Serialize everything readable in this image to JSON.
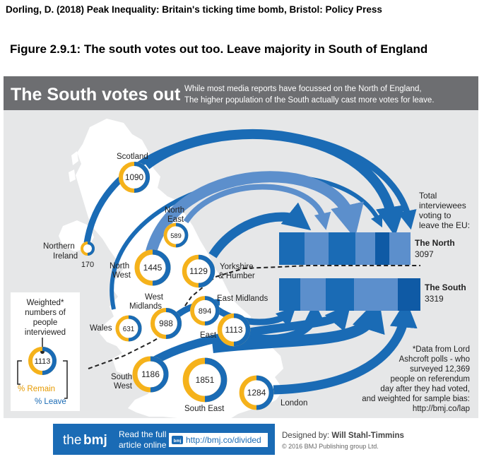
{
  "citation": "Dorling, D. (2018) Peak Inequality: Britain's ticking time bomb, Bristol: Policy Press",
  "figure_title": "Figure 2.9.1: The south votes out too. Leave majority in South of England",
  "colors": {
    "banner": "#6d6e71",
    "background": "#e6e7e8",
    "land": "#ffffff",
    "remain": "#f5b21b",
    "leave": "#1a6bb5",
    "leave_light": "#5c8fcc",
    "dark_blue": "#0f5aa5",
    "footer": "#1a6bb5"
  },
  "header": {
    "title": "The South votes out",
    "subtitle_line1": "While most media reports have focussed on the North of England,",
    "subtitle_line2": "The higher population of the South actually cast more votes for leave."
  },
  "regions": [
    {
      "id": "scotland",
      "name": "Scotland",
      "count": "1090"
    },
    {
      "id": "northern-ireland",
      "name": "Northern Ireland",
      "count": "170"
    },
    {
      "id": "north-east",
      "name": "North East",
      "count": "589"
    },
    {
      "id": "north-west",
      "name": "North West",
      "count": "1445"
    },
    {
      "id": "yorkshire",
      "name": "Yorkshire & Humber",
      "count": "1129"
    },
    {
      "id": "west-midlands",
      "name": "West Midlands",
      "count": "988"
    },
    {
      "id": "east-midlands",
      "name": "East Midlands",
      "count": "894"
    },
    {
      "id": "wales",
      "name": "Wales",
      "count": "631"
    },
    {
      "id": "east",
      "name": "East",
      "count": "1113"
    },
    {
      "id": "south-west",
      "name": "South West",
      "count": "1186"
    },
    {
      "id": "south-east",
      "name": "South East",
      "count": "1851"
    },
    {
      "id": "london",
      "name": "London",
      "count": "1284"
    }
  ],
  "labels": {
    "scotland": "Scotland",
    "ni_1": "Northern",
    "ni_2": "Ireland",
    "ne_1": "North",
    "ne_2": "East",
    "nw_1": "North",
    "nw_2": "West",
    "yh_1": "Yorkshire",
    "yh_2": "& Humber",
    "wm_1": "West",
    "wm_2": "Midlands",
    "em": "East Midlands",
    "wales": "Wales",
    "east": "East",
    "sw_1": "South",
    "sw_2": "West",
    "se": "South East",
    "london": "London"
  },
  "totals": {
    "caption_line1": "Total",
    "caption_line2": "interviewees",
    "caption_line3": "voting to",
    "caption_line4": "leave the EU:",
    "north_label": "The North",
    "north_value": "3097",
    "south_label": "The South",
    "south_value": "3319"
  },
  "legend": {
    "line1": "Weighted*",
    "line2": "numbers of",
    "line3": "people",
    "line4": "interviewed",
    "example_value": "1113",
    "remain_label": "% Remain",
    "leave_label": "% Leave"
  },
  "footnote": {
    "line1": "*Data from Lord",
    "line2": "Ashcroft polls - who",
    "line3": "surveyed 12,369",
    "line4": "people on referendum",
    "line5": "day after they had voted,",
    "line6": "and weighted for sample bias:",
    "line7": "http://bmj.co/lap"
  },
  "footer": {
    "logo_the": "the",
    "logo_bmj": "bmj",
    "read_line1": "Read the full",
    "read_line2": "article online",
    "link_icon": "bmj-link-icon",
    "url": "http://bmj.co/divided",
    "designed_prefix": "Designed by: ",
    "designer": "Will Stahl-Timmins",
    "copyright": "© 2016 BMJ Publishing group Ltd."
  }
}
